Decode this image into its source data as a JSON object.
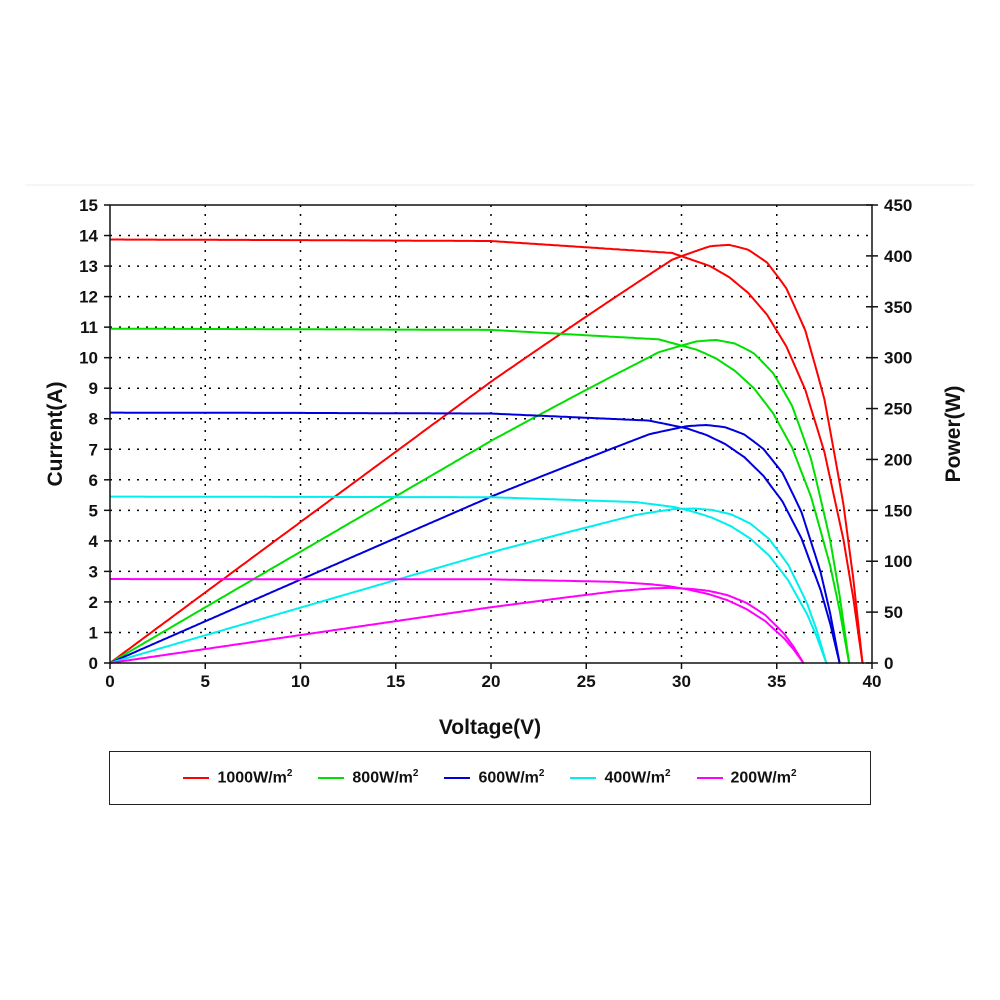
{
  "chart_data": {
    "type": "line",
    "xlabel": "Voltage(V)",
    "ylabel": "Current(A)",
    "y2label": "Power(W)",
    "xlim": [
      0,
      40
    ],
    "ylim": [
      0,
      15
    ],
    "y2lim": [
      0,
      450
    ],
    "xticks": [
      "0",
      "5",
      "10",
      "15",
      "20",
      "25",
      "30",
      "35",
      "40"
    ],
    "yticks": [
      "0",
      "1",
      "2",
      "3",
      "4",
      "5",
      "6",
      "7",
      "8",
      "9",
      "10",
      "11",
      "12",
      "13",
      "14",
      "15"
    ],
    "y2ticks": [
      "0",
      "50",
      "100",
      "150",
      "200",
      "250",
      "300",
      "350",
      "400",
      "450"
    ],
    "grid": true,
    "legend_position": "bottom",
    "series": [
      {
        "name": "1000W/m",
        "sup": "2",
        "color": "#ff0000",
        "voltage": [
          0,
          10,
          20,
          29.5,
          31.5,
          32.5,
          33.5,
          34.5,
          35.5,
          36.5,
          37.5,
          38.5,
          39,
          39.5
        ],
        "current": [
          13.87,
          13.85,
          13.82,
          13.43,
          13.0,
          12.64,
          12.12,
          11.4,
          10.37,
          8.95,
          6.91,
          4.05,
          2.19,
          0
        ]
      },
      {
        "name": "800W/m",
        "sup": "2",
        "color": "#00e000",
        "voltage": [
          0,
          10,
          20,
          28.8,
          30.8,
          31.8,
          32.8,
          33.8,
          34.8,
          35.8,
          36.8,
          37.8,
          38.3,
          38.8
        ],
        "current": [
          10.95,
          10.93,
          10.91,
          10.6,
          10.26,
          9.98,
          9.57,
          9.0,
          8.19,
          7.06,
          5.45,
          3.2,
          1.73,
          0
        ]
      },
      {
        "name": "600W/m",
        "sup": "2",
        "color": "#0000dd",
        "voltage": [
          0,
          10,
          20,
          28.3,
          30.3,
          31.3,
          32.3,
          33.3,
          34.3,
          35.3,
          36.3,
          37.3,
          37.8,
          38.3
        ],
        "current": [
          8.2,
          8.19,
          8.17,
          7.94,
          7.68,
          7.47,
          7.17,
          6.74,
          6.13,
          5.29,
          4.08,
          2.39,
          1.3,
          0
        ]
      },
      {
        "name": "400W/m",
        "sup": "2",
        "color": "#00eeee",
        "voltage": [
          0,
          10,
          20,
          27.6,
          29.6,
          30.6,
          31.6,
          32.6,
          33.6,
          34.6,
          35.6,
          36.6,
          37.1,
          37.6
        ],
        "current": [
          5.45,
          5.44,
          5.43,
          5.27,
          5.11,
          4.96,
          4.76,
          4.48,
          4.08,
          3.52,
          2.71,
          1.59,
          0.86,
          0
        ]
      },
      {
        "name": "200W/m",
        "sup": "2",
        "color": "#ff00ff",
        "voltage": [
          0,
          10,
          20,
          26.4,
          28.4,
          29.4,
          30.4,
          31.4,
          32.4,
          33.4,
          34.4,
          35.4,
          35.9,
          36.4
        ],
        "current": [
          2.75,
          2.745,
          2.74,
          2.66,
          2.58,
          2.51,
          2.4,
          2.26,
          2.06,
          1.77,
          1.37,
          0.8,
          0.43,
          0
        ]
      }
    ]
  }
}
